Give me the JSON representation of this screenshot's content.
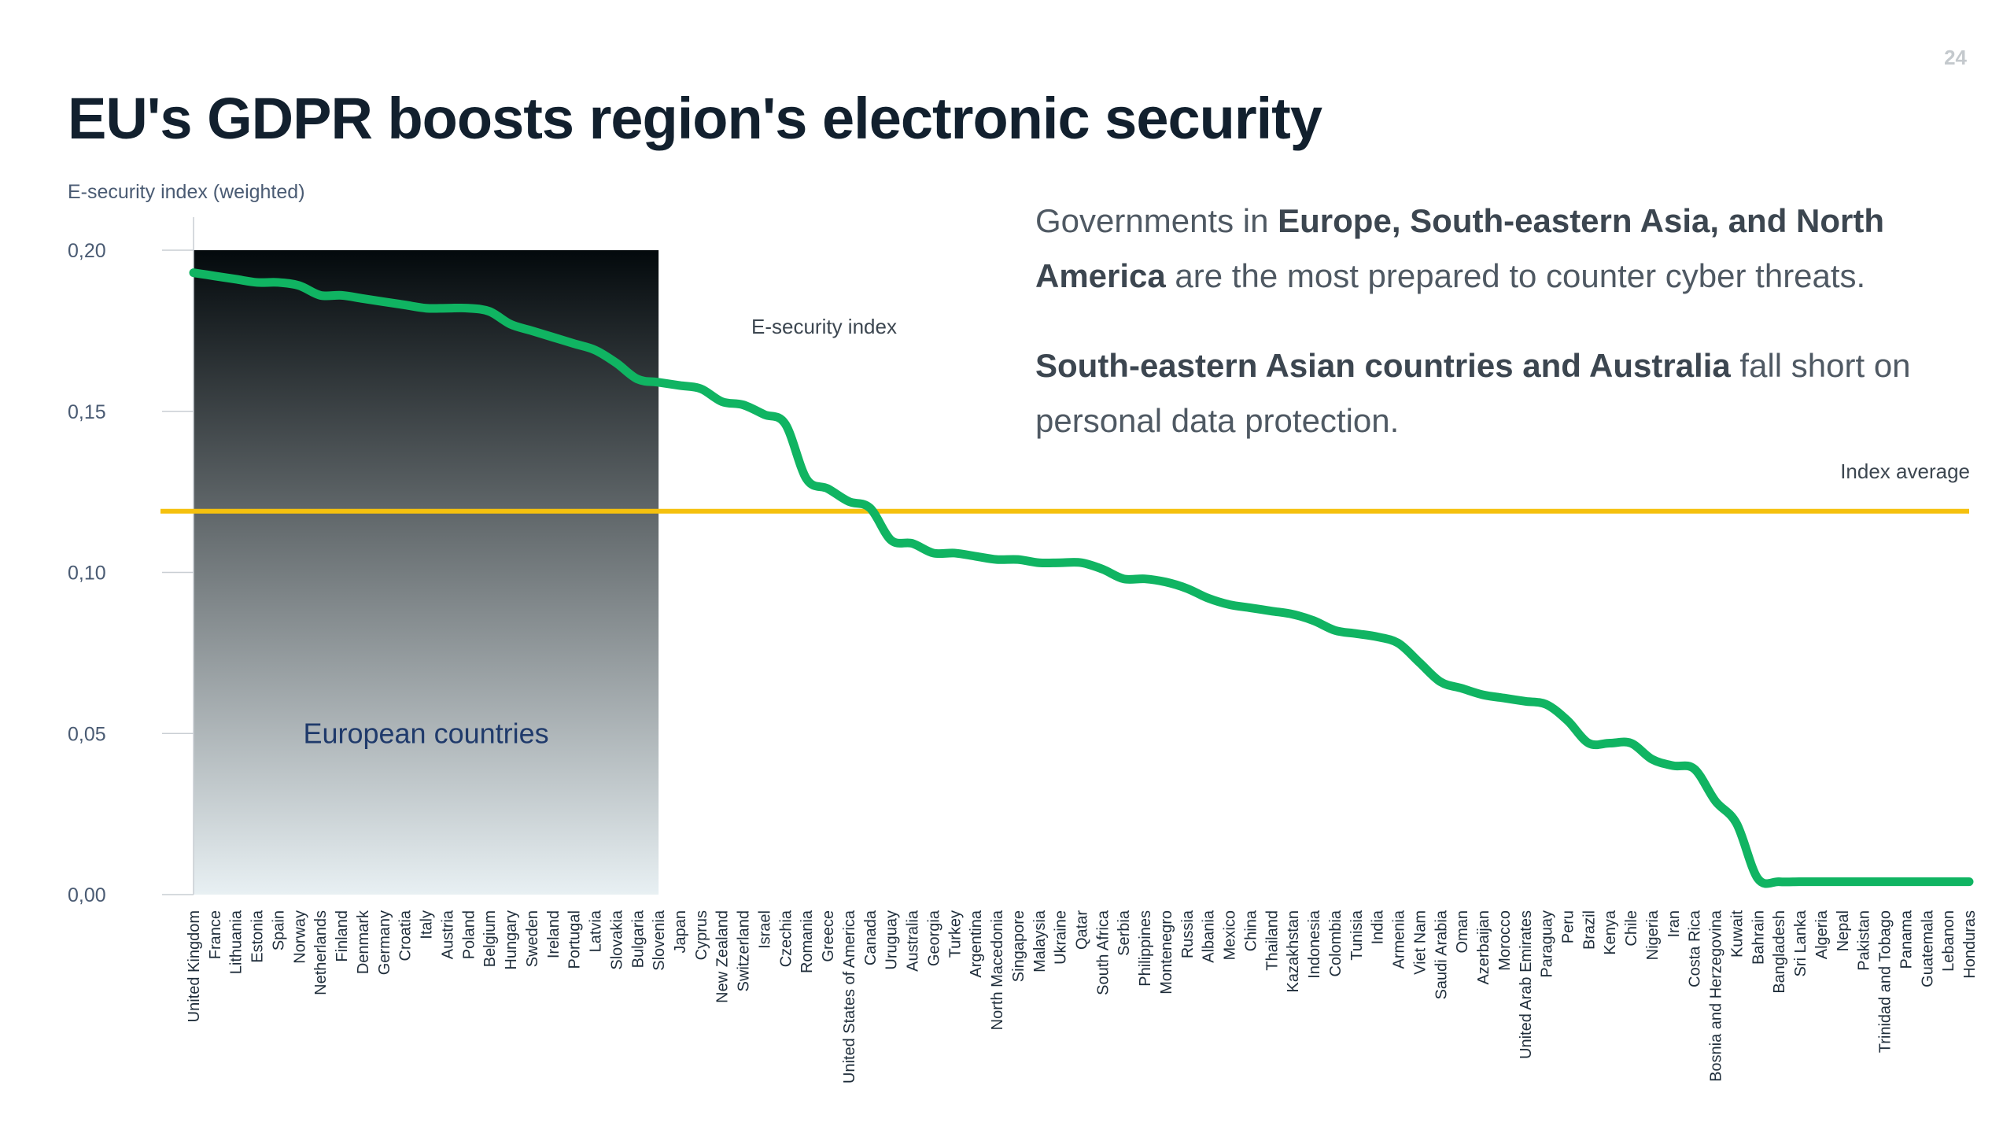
{
  "page": {
    "number": "24",
    "title": "EU's GDPR boosts region's electronic security"
  },
  "text": {
    "p1_a": "Governments in ",
    "p1_b": "Europe, South-eastern Asia, and North America",
    "p1_c": " are the most prepared to counter cyber threats.",
    "p2_a": "South-eastern Asian countries and Australia",
    "p2_b": " fall short on personal data protection."
  },
  "colors": {
    "line": "#10b462",
    "average": "#f5c10e",
    "shade_top": "#03090c",
    "shade_bottom": "#e8f0f3",
    "axis": "#c9ced3"
  },
  "chart_data": {
    "type": "line",
    "title": "",
    "ylabel": "E-security index (weighted)",
    "xlabel": "",
    "ylim": [
      0,
      0.2
    ],
    "yticks": [
      "0,00",
      "0,05",
      "0,10",
      "0,15",
      "0,20"
    ],
    "series_label": "E-security index",
    "average_label": "Index average",
    "average_value": 0.119,
    "region_label": "European countries",
    "region_end": "Slovenia",
    "categories": [
      "United Kingdom",
      "France",
      "Lithuania",
      "Estonia",
      "Spain",
      "Norway",
      "Netherlands",
      "Finland",
      "Denmark",
      "Germany",
      "Croatia",
      "Italy",
      "Austria",
      "Poland",
      "Belgium",
      "Hungary",
      "Sweden",
      "Ireland",
      "Portugal",
      "Latvia",
      "Slovakia",
      "Bulgaria",
      "Slovenia",
      "Japan",
      "Cyprus",
      "New Zealand",
      "Switzerland",
      "Israel",
      "Czechia",
      "Romania",
      "Greece",
      "United States of America",
      "Canada",
      "Uruguay",
      "Australia",
      "Georgia",
      "Turkey",
      "Argentina",
      "North Macedonia",
      "Singapore",
      "Malaysia",
      "Ukraine",
      "Qatar",
      "South Africa",
      "Serbia",
      "Philippines",
      "Montenegro",
      "Russia",
      "Albania",
      "Mexico",
      "China",
      "Thailand",
      "Kazakhstan",
      "Indonesia",
      "Colombia",
      "Tunisia",
      "India",
      "Armenia",
      "Viet Nam",
      "Saudi Arabia",
      "Oman",
      "Azerbaijan",
      "Morocco",
      "United Arab Emirates",
      "Paraguay",
      "Peru",
      "Brazil",
      "Kenya",
      "Chile",
      "Nigeria",
      "Iran",
      "Costa Rica",
      "Bosnia and Herzegovina",
      "Kuwait",
      "Bahrain",
      "Bangladesh",
      "Sri Lanka",
      "Algeria",
      "Nepal",
      "Pakistan",
      "Trinidad and Tobago",
      "Panama",
      "Guatemala",
      "Lebanon",
      "Honduras"
    ],
    "values": [
      0.193,
      0.192,
      0.191,
      0.19,
      0.19,
      0.189,
      0.186,
      0.186,
      0.185,
      0.184,
      0.183,
      0.182,
      0.182,
      0.182,
      0.181,
      0.177,
      0.175,
      0.173,
      0.171,
      0.169,
      0.165,
      0.16,
      0.159,
      0.158,
      0.157,
      0.153,
      0.152,
      0.149,
      0.146,
      0.129,
      0.126,
      0.122,
      0.12,
      0.11,
      0.109,
      0.106,
      0.106,
      0.105,
      0.104,
      0.104,
      0.103,
      0.103,
      0.103,
      0.101,
      0.098,
      0.098,
      0.097,
      0.095,
      0.092,
      0.09,
      0.089,
      0.088,
      0.087,
      0.085,
      0.082,
      0.081,
      0.08,
      0.078,
      0.072,
      0.066,
      0.064,
      0.062,
      0.061,
      0.06,
      0.059,
      0.054,
      0.047,
      0.047,
      0.047,
      0.042,
      0.04,
      0.039,
      0.029,
      0.022,
      0.005,
      0.004,
      0.004,
      0.004,
      0.004,
      0.004,
      0.004,
      0.004,
      0.004,
      0.004,
      0.004
    ]
  }
}
